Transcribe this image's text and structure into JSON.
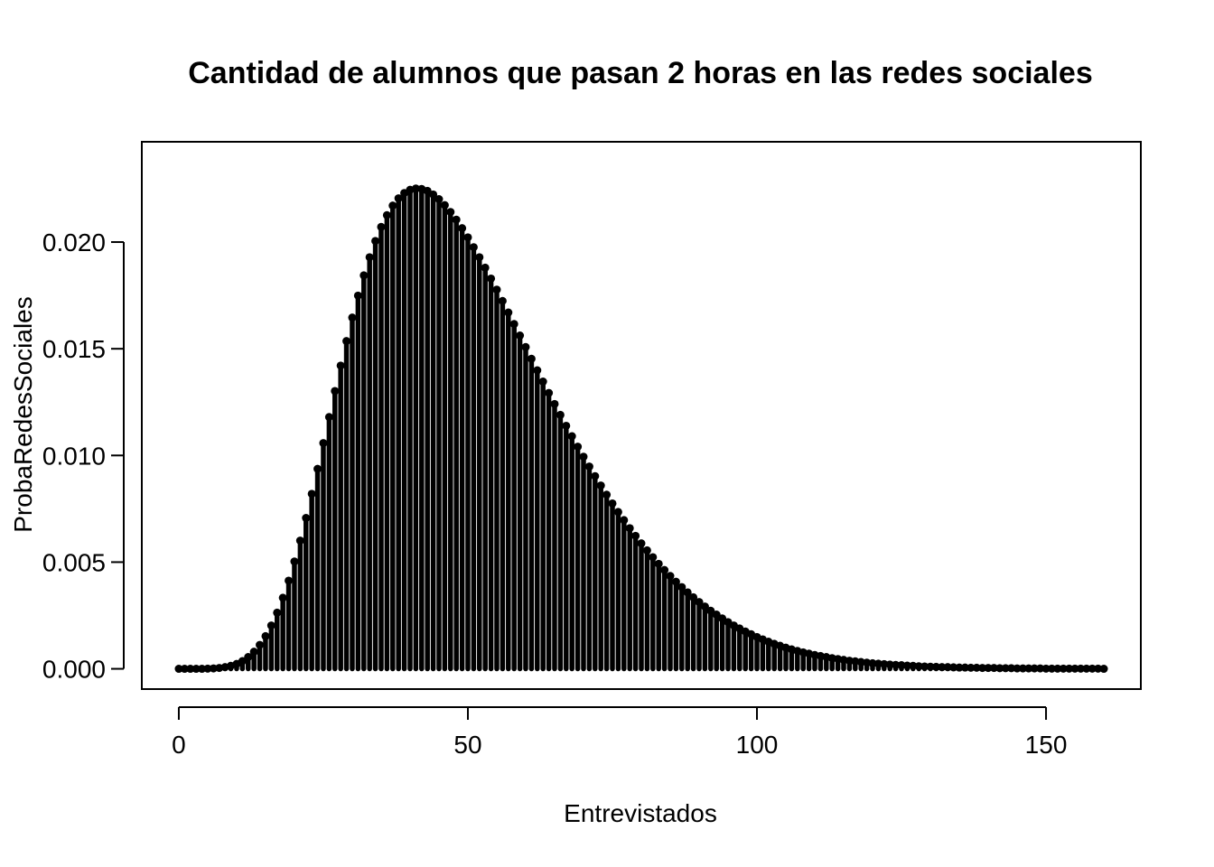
{
  "chart_data": {
    "type": "scatter",
    "title": "Cantidad de alumnos que pasan 2 horas en las redes sociales",
    "xlabel": "Entrevistados",
    "ylabel": "ProbaRedesSociales",
    "xlim": [
      -6.4,
      166.4
    ],
    "ylim": [
      -0.00095,
      0.0247
    ],
    "x_ticks": [
      0,
      50,
      100,
      150
    ],
    "x_tick_labels": [
      "0",
      "50",
      "100",
      "150"
    ],
    "y_ticks": [
      0,
      0.005,
      0.01,
      0.015,
      0.02
    ],
    "y_tick_labels": [
      "0.000",
      "0.005",
      "0.010",
      "0.015",
      "0.020"
    ],
    "grid": false,
    "legend": "none",
    "point_color": "#000000",
    "vertical_lines": true,
    "x": [
      0,
      1,
      2,
      3,
      4,
      5,
      6,
      7,
      8,
      9,
      10,
      11,
      12,
      13,
      14,
      15,
      16,
      17,
      18,
      19,
      20,
      21,
      22,
      23,
      24,
      25,
      26,
      27,
      28,
      29,
      30,
      31,
      32,
      33,
      34,
      35,
      36,
      37,
      38,
      39,
      40,
      41,
      42,
      43,
      44,
      45,
      46,
      47,
      48,
      49,
      50,
      51,
      52,
      53,
      54,
      55,
      56,
      57,
      58,
      59,
      60,
      61,
      62,
      63,
      64,
      65,
      66,
      67,
      68,
      69,
      70,
      71,
      72,
      73,
      74,
      75,
      76,
      77,
      78,
      79,
      80,
      81,
      82,
      83,
      84,
      85,
      86,
      87,
      88,
      89,
      90,
      91,
      92,
      93,
      94,
      95,
      96,
      97,
      98,
      99,
      100,
      101,
      102,
      103,
      104,
      105,
      106,
      107,
      108,
      109,
      110,
      111,
      112,
      113,
      114,
      115,
      116,
      117,
      118,
      119,
      120,
      121,
      122,
      123,
      124,
      125,
      126,
      127,
      128,
      129,
      130,
      131,
      132,
      133,
      134,
      135,
      136,
      137,
      138,
      139,
      140,
      141,
      142,
      143,
      144,
      145,
      146,
      147,
      148,
      149,
      150,
      151,
      152,
      153,
      154,
      155,
      156,
      157,
      158,
      159,
      160
    ],
    "y": [
      0.0,
      0.0,
      0.0,
      0.0,
      0.0,
      1e-05,
      2e-05,
      4e-05,
      8e-05,
      0.00014,
      0.00023,
      0.00036,
      0.00055,
      0.0008,
      0.00112,
      0.00153,
      0.00203,
      0.00263,
      0.00333,
      0.00413,
      0.00503,
      0.00601,
      0.00707,
      0.0082,
      0.00937,
      0.01058,
      0.0118,
      0.01302,
      0.01421,
      0.01536,
      0.01646,
      0.01749,
      0.01844,
      0.01929,
      0.02005,
      0.02071,
      0.02126,
      0.02171,
      0.02205,
      0.0223,
      0.02245,
      0.02251,
      0.02249,
      0.0224,
      0.02223,
      0.02201,
      0.02173,
      0.02141,
      0.02105,
      0.02065,
      0.02022,
      0.01976,
      0.01929,
      0.0188,
      0.01829,
      0.01777,
      0.01724,
      0.0167,
      0.01616,
      0.01562,
      0.01508,
      0.01453,
      0.01399,
      0.01346,
      0.01293,
      0.01241,
      0.0119,
      0.01139,
      0.0109,
      0.01041,
      0.00994,
      0.00948,
      0.00903,
      0.00859,
      0.00816,
      0.00775,
      0.00735,
      0.00697,
      0.00659,
      0.00623,
      0.00588,
      0.00555,
      0.00523,
      0.00492,
      0.00463,
      0.00435,
      0.00408,
      0.00383,
      0.00358,
      0.00335,
      0.00313,
      0.00292,
      0.00272,
      0.00254,
      0.00236,
      0.00219,
      0.00203,
      0.00189,
      0.00175,
      0.00162,
      0.00149,
      0.00138,
      0.00127,
      0.00117,
      0.00108,
      0.00099,
      0.00091,
      0.00084,
      0.00077,
      0.00071,
      0.00065,
      0.0006,
      0.00055,
      0.0005,
      0.00046,
      0.00042,
      0.00038,
      0.00035,
      0.00032,
      0.00029,
      0.00026,
      0.00024,
      0.00022,
      0.0002,
      0.00018,
      0.00017,
      0.00015,
      0.00014,
      0.00012,
      0.00011,
      0.0001,
      9e-05,
      8e-05,
      8e-05,
      7e-05,
      6e-05,
      6e-05,
      5e-05,
      5e-05,
      4e-05,
      4e-05,
      4e-05,
      3e-05,
      3e-05,
      3e-05,
      2e-05,
      2e-05,
      2e-05,
      2e-05,
      2e-05,
      1e-05,
      1e-05,
      1e-05,
      1e-05,
      1e-05,
      1e-05,
      1e-05,
      1e-05,
      1e-05,
      1e-05,
      0.0
    ]
  }
}
